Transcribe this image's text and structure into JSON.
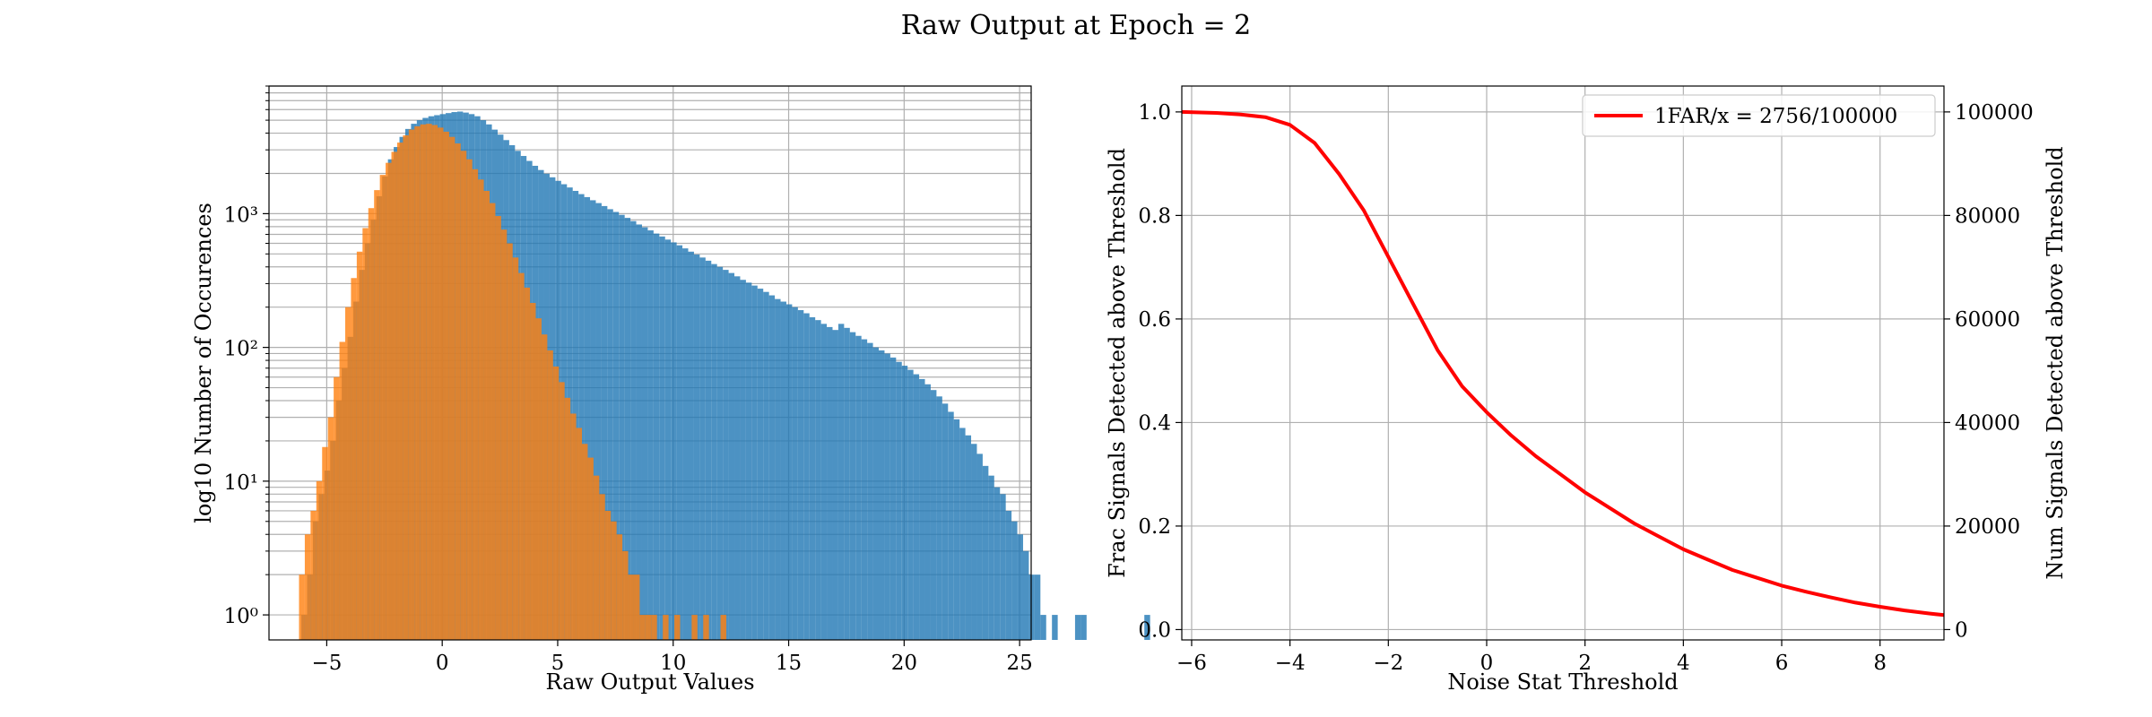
{
  "figure": {
    "title": "Raw Output at Epoch = 2"
  },
  "chart_data": [
    {
      "type": "bar",
      "subtype": "histogram",
      "xlabel": "Raw Output Values",
      "ylabel": "log10 Number of Occurences",
      "yscale": "log",
      "xlim": [
        -7.5,
        25.5
      ],
      "ylim": [
        0.65,
        9000
      ],
      "xticks": [
        -5,
        0,
        5,
        10,
        15,
        20,
        25
      ],
      "xtick_labels": [
        "−5",
        "0",
        "5",
        "10",
        "15",
        "20",
        "25"
      ],
      "yticks": [
        1,
        10,
        100,
        1000
      ],
      "ytick_labels": [
        "10⁰",
        "10¹",
        "10²",
        "10³"
      ],
      "grid": true,
      "series": [
        {
          "color": "#1f77b4",
          "bin_start": -6.1,
          "bin_width": 0.25,
          "counts": [
            1,
            2,
            5,
            8,
            12,
            20,
            40,
            70,
            120,
            220,
            380,
            600,
            900,
            1350,
            1900,
            2550,
            3150,
            3750,
            4300,
            4700,
            5000,
            5200,
            5350,
            5450,
            5550,
            5650,
            5750,
            5800,
            5700,
            5550,
            5350,
            5000,
            4650,
            4250,
            3900,
            3550,
            3250,
            2950,
            2700,
            2480,
            2280,
            2120,
            1990,
            1870,
            1760,
            1660,
            1570,
            1480,
            1400,
            1330,
            1260,
            1200,
            1140,
            1080,
            1030,
            980,
            930,
            880,
            830,
            790,
            750,
            710,
            675,
            640,
            610,
            580,
            550,
            520,
            495,
            470,
            445,
            420,
            400,
            380,
            360,
            340,
            320,
            305,
            290,
            275,
            260,
            245,
            230,
            220,
            210,
            200,
            190,
            180,
            168,
            160,
            150,
            142,
            135,
            150,
            140,
            130,
            122,
            115,
            108,
            100,
            95,
            90,
            84,
            78,
            73,
            68,
            63,
            58,
            53,
            48,
            43,
            38,
            33,
            29,
            25,
            22,
            19,
            16,
            13,
            11,
            9,
            8,
            6,
            5,
            4,
            3,
            2,
            2,
            1,
            0,
            1,
            0,
            0,
            0,
            1,
            1,
            0,
            0,
            0,
            0,
            0,
            0,
            0,
            0,
            0,
            0,
            1
          ]
        },
        {
          "color": "#ff7f0e",
          "bin_start": -6.2,
          "bin_width": 0.25,
          "counts": [
            2,
            4,
            6,
            10,
            18,
            30,
            60,
            110,
            200,
            330,
            520,
            780,
            1100,
            1500,
            1950,
            2400,
            2900,
            3400,
            3850,
            4250,
            4500,
            4650,
            4700,
            4600,
            4400,
            4100,
            3750,
            3350,
            2950,
            2550,
            2150,
            1800,
            1480,
            1200,
            960,
            760,
            600,
            470,
            360,
            280,
            215,
            165,
            125,
            95,
            72,
            55,
            42,
            32,
            25,
            19,
            15,
            11,
            8,
            6,
            5,
            4,
            3,
            2,
            2,
            1,
            1,
            1,
            0,
            1,
            0,
            1,
            0,
            0,
            1,
            0,
            1,
            0,
            0,
            1
          ]
        }
      ]
    },
    {
      "type": "line",
      "xlabel": "Noise Stat Threshold",
      "ylabel": "Frac Signals Detected above Threshold",
      "ylabel_right": "Num Signals Detected above Threshold",
      "xlim": [
        -6.2,
        9.3
      ],
      "ylim": [
        -0.02,
        1.05
      ],
      "ylim_right": [
        -2000,
        105000
      ],
      "xticks": [
        -6,
        -4,
        -2,
        0,
        2,
        4,
        6,
        8
      ],
      "xtick_labels": [
        "−6",
        "−4",
        "−2",
        "0",
        "2",
        "4",
        "6",
        "8"
      ],
      "yticks": [
        0.0,
        0.2,
        0.4,
        0.6,
        0.8,
        1.0
      ],
      "ytick_labels": [
        "0.0",
        "0.2",
        "0.4",
        "0.6",
        "0.8",
        "1.0"
      ],
      "yticks_right": [
        0,
        20000,
        40000,
        60000,
        80000,
        100000
      ],
      "ytick_labels_right": [
        "0",
        "20000",
        "40000",
        "60000",
        "80000",
        "100000"
      ],
      "grid": true,
      "legend_position": "top-right",
      "series": [
        {
          "name": "1FAR/x = 2756/100000",
          "color": "#ff0000",
          "x": [
            -6.2,
            -5.5,
            -5,
            -4.5,
            -4,
            -3.5,
            -3,
            -2.5,
            -2,
            -1.5,
            -1,
            -0.5,
            0,
            0.5,
            1,
            1.5,
            2,
            2.5,
            3,
            3.5,
            4,
            4.5,
            5,
            5.5,
            6,
            6.5,
            7,
            7.5,
            8,
            8.5,
            9,
            9.3
          ],
          "y": [
            1.0,
            0.998,
            0.995,
            0.99,
            0.975,
            0.94,
            0.88,
            0.81,
            0.72,
            0.63,
            0.54,
            0.47,
            0.42,
            0.375,
            0.335,
            0.3,
            0.265,
            0.235,
            0.205,
            0.18,
            0.155,
            0.135,
            0.115,
            0.1,
            0.085,
            0.073,
            0.062,
            0.052,
            0.044,
            0.037,
            0.031,
            0.028
          ]
        }
      ]
    }
  ]
}
